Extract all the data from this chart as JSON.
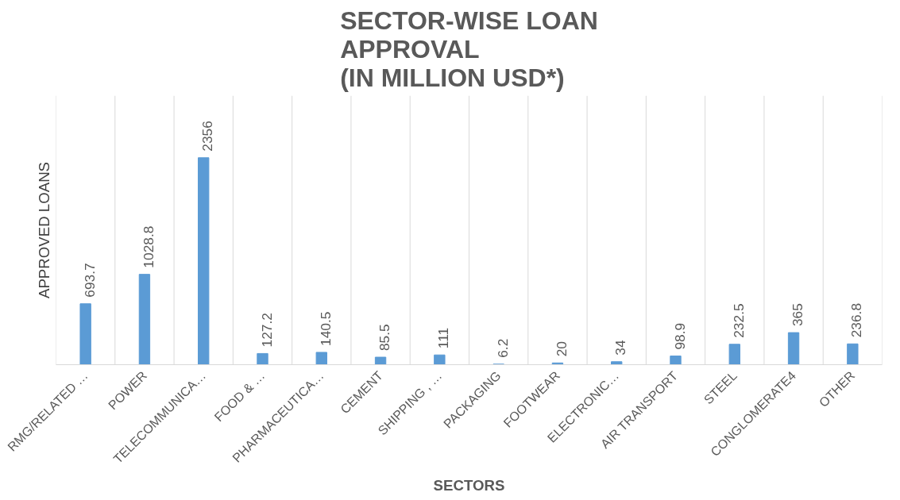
{
  "chart_data": {
    "type": "bar",
    "title": "SECTOR-WISE LOAN\nAPPROVAL\n(IN MILLION USD*)",
    "xlabel": "SECTORS",
    "ylabel": "APPROVED LOANS",
    "categories": [
      "RMG/RELATED …",
      "POWER",
      "TELECOMMUNICA…",
      "FOOD & …",
      "PHARMACEUTICA…",
      "CEMENT",
      "SHIPPING , …",
      "PACKAGING",
      "FOOTWEAR",
      "ELECTRONIC…",
      "AIR TRANSPORT",
      "STEEL",
      "CONGLOMERATE4",
      "OTHER"
    ],
    "values": [
      693.7,
      1028.8,
      2356,
      127.2,
      140.5,
      85.5,
      111,
      6.2,
      20,
      34,
      98.9,
      232.5,
      365,
      236.8
    ],
    "color": "#5b9bd5",
    "data_labels": true,
    "grid": "x"
  }
}
